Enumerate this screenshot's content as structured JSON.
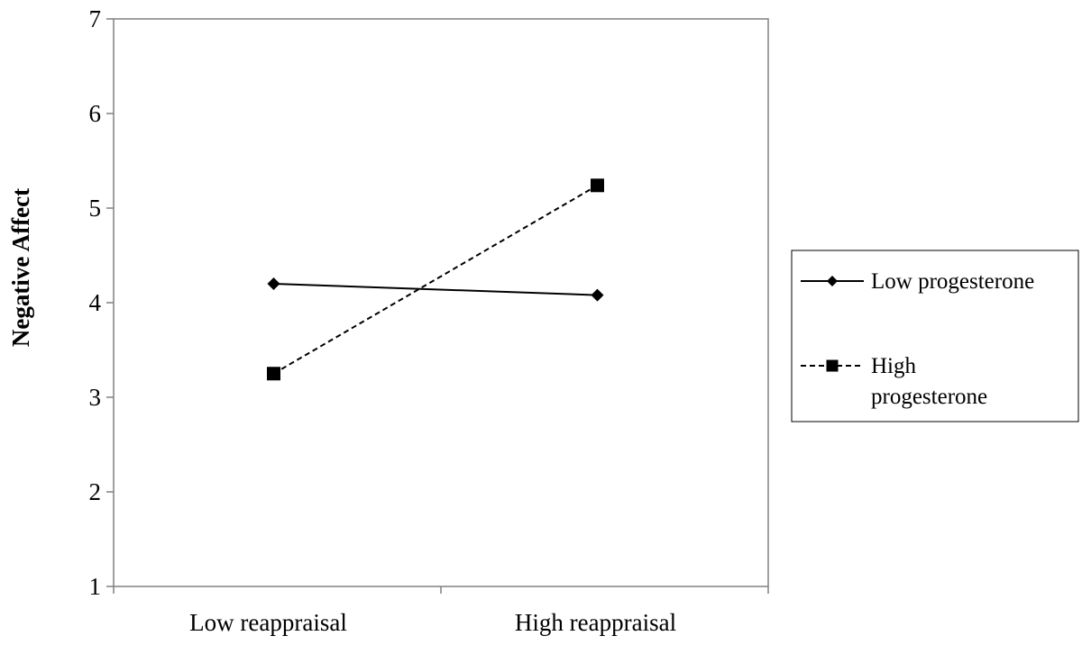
{
  "chart_data": {
    "type": "line",
    "title": "",
    "xlabel": "",
    "ylabel": "Negative Affect",
    "categories": [
      "Low reappraisal",
      "High reappraisal"
    ],
    "ylim": [
      1,
      7
    ],
    "yticks": [
      "1",
      "2",
      "3",
      "4",
      "5",
      "6",
      "7"
    ],
    "grid": false,
    "legend_position": "right",
    "series": [
      {
        "name": "Low progesterone",
        "values": [
          4.2,
          4.08
        ],
        "line_style": "solid",
        "marker": "diamond",
        "legend_lines": [
          "Low progesterone"
        ],
        "color": "#000000"
      },
      {
        "name": "High progesterone",
        "values": [
          3.25,
          5.24
        ],
        "line_style": "dashed",
        "marker": "square",
        "legend_lines": [
          "High",
          "progesterone"
        ],
        "color": "#000000"
      }
    ]
  }
}
